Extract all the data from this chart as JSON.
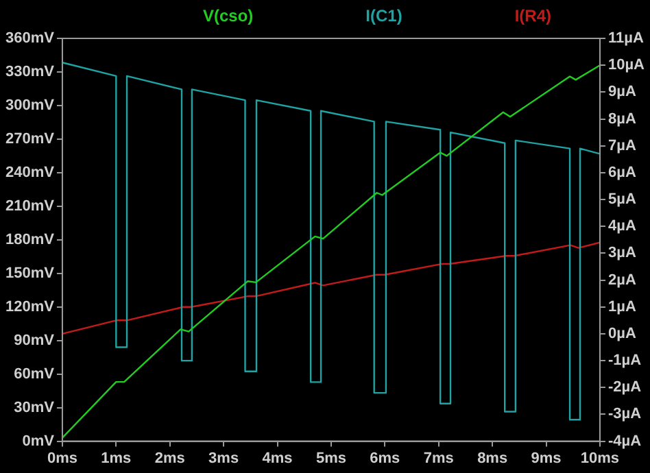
{
  "chart_data": {
    "type": "line",
    "legend": "top",
    "grid": false,
    "marker": "none",
    "line_style": "solid",
    "xlim": [
      0,
      10
    ],
    "xticks": [
      {
        "value": 0,
        "label": "0ms"
      },
      {
        "value": 1,
        "label": "1ms"
      },
      {
        "value": 2,
        "label": "2ms"
      },
      {
        "value": 3,
        "label": "3ms"
      },
      {
        "value": 4,
        "label": "4ms"
      },
      {
        "value": 5,
        "label": "5ms"
      },
      {
        "value": 6,
        "label": "6ms"
      },
      {
        "value": 7,
        "label": "7ms"
      },
      {
        "value": 8,
        "label": "8ms"
      },
      {
        "value": 9,
        "label": "9ms"
      },
      {
        "value": 10,
        "label": "10ms"
      }
    ],
    "ylim": [
      0,
      360
    ],
    "yticks": [
      {
        "value": 0,
        "label": "0mV"
      },
      {
        "value": 30,
        "label": "30mV"
      },
      {
        "value": 60,
        "label": "60mV"
      },
      {
        "value": 90,
        "label": "90mV"
      },
      {
        "value": 120,
        "label": "120mV"
      },
      {
        "value": 150,
        "label": "150mV"
      },
      {
        "value": 180,
        "label": "180mV"
      },
      {
        "value": 210,
        "label": "210mV"
      },
      {
        "value": 240,
        "label": "240mV"
      },
      {
        "value": 270,
        "label": "270mV"
      },
      {
        "value": 300,
        "label": "300mV"
      },
      {
        "value": 330,
        "label": "330mV"
      },
      {
        "value": 360,
        "label": "360mV"
      }
    ],
    "y2lim": [
      -4,
      11
    ],
    "y2ticks": [
      {
        "value": -4,
        "label": "-4µA"
      },
      {
        "value": -3,
        "label": "-3µA"
      },
      {
        "value": -2,
        "label": "-2µA"
      },
      {
        "value": -1,
        "label": "-1µA"
      },
      {
        "value": 0,
        "label": "0µA"
      },
      {
        "value": 1,
        "label": "1µA"
      },
      {
        "value": 2,
        "label": "2µA"
      },
      {
        "value": 3,
        "label": "3µA"
      },
      {
        "value": 4,
        "label": "4µA"
      },
      {
        "value": 5,
        "label": "5µA"
      },
      {
        "value": 6,
        "label": "6µA"
      },
      {
        "value": 7,
        "label": "7µA"
      },
      {
        "value": 8,
        "label": "8µA"
      },
      {
        "value": 9,
        "label": "9µA"
      },
      {
        "value": 10,
        "label": "10µA"
      },
      {
        "value": 11,
        "label": "11µA"
      }
    ],
    "series": [
      {
        "name": "V(cso)",
        "color": "#22cc22",
        "x": [
          0,
          1.0,
          1.15,
          2.2,
          2.35,
          3.45,
          3.6,
          4.7,
          4.85,
          5.85,
          5.95,
          7.03,
          7.15,
          8.2,
          8.33,
          9.44,
          9.55,
          10
        ],
        "values": [
          3,
          53,
          53,
          100,
          98,
          143,
          142,
          183,
          181,
          222,
          220,
          258,
          255,
          294,
          290,
          326,
          323,
          336
        ]
      },
      {
        "name": "I(C1)",
        "color": "#1fa3a3",
        "axis": "y2",
        "x": [
          0,
          1.0,
          1.0,
          1.2,
          1.2,
          2.22,
          2.22,
          2.41,
          2.41,
          3.4,
          3.4,
          3.61,
          3.61,
          4.62,
          4.62,
          4.81,
          4.81,
          5.8,
          5.8,
          6.02,
          6.02,
          7.03,
          7.03,
          7.22,
          7.22,
          8.23,
          8.23,
          8.43,
          8.43,
          9.44,
          9.44,
          9.63,
          9.63,
          10
        ],
        "values": [
          10.1,
          9.6,
          -0.5,
          -0.5,
          9.6,
          9.1,
          -1.0,
          -1.0,
          9.1,
          8.7,
          -1.4,
          -1.4,
          8.7,
          8.3,
          -1.8,
          -1.8,
          8.3,
          7.9,
          -2.2,
          -2.2,
          7.9,
          7.6,
          -2.6,
          -2.6,
          7.5,
          7.1,
          -2.9,
          -2.9,
          7.2,
          6.9,
          -3.2,
          -3.2,
          6.9,
          6.7
        ]
      },
      {
        "name": "I(R4)",
        "color": "#c41a1a",
        "axis": "y2",
        "x": [
          0,
          1.0,
          1.2,
          2.25,
          2.4,
          3.45,
          3.6,
          4.7,
          4.85,
          5.85,
          6.0,
          7.05,
          7.2,
          8.25,
          8.4,
          9.45,
          9.6,
          10
        ],
        "values": [
          0,
          0.5,
          0.5,
          1.0,
          1.0,
          1.4,
          1.4,
          1.9,
          1.8,
          2.2,
          2.2,
          2.6,
          2.6,
          2.9,
          2.9,
          3.3,
          3.2,
          3.4
        ]
      }
    ]
  }
}
